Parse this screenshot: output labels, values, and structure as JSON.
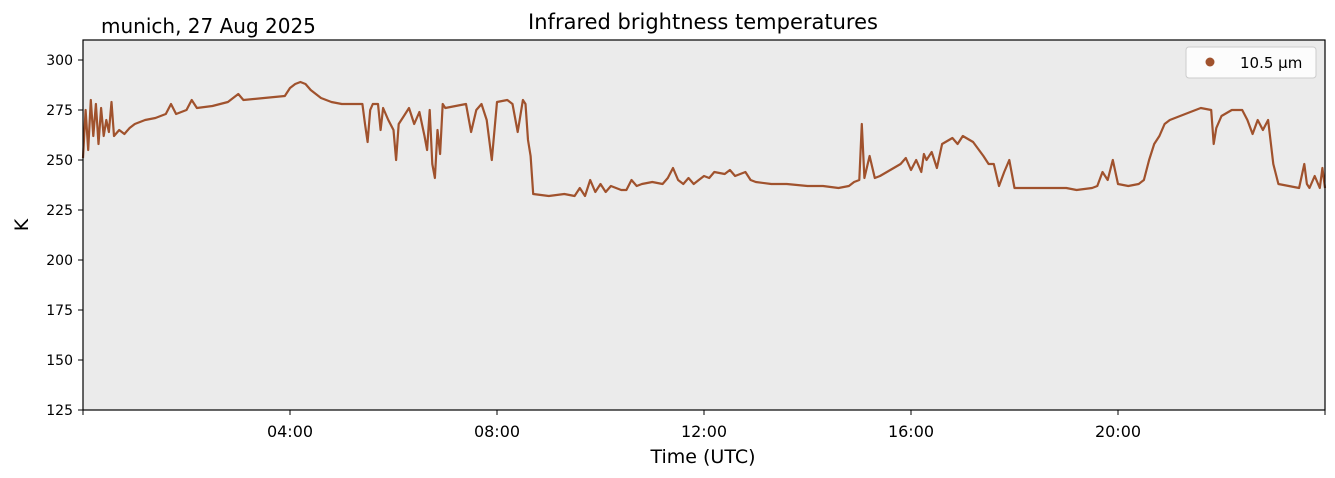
{
  "subtitle": "munich, 27 Aug 2025",
  "chart_data": {
    "type": "line",
    "title": "Infrared brightness temperatures",
    "xlabel": "Time (UTC)",
    "ylabel": "K",
    "xlim": [
      0,
      24
    ],
    "ylim": [
      125,
      310
    ],
    "x_ticks": [
      {
        "value": 4,
        "label": "04:00"
      },
      {
        "value": 8,
        "label": "08:00"
      },
      {
        "value": 12,
        "label": "12:00"
      },
      {
        "value": 16,
        "label": "16:00"
      },
      {
        "value": 20,
        "label": "20:00"
      }
    ],
    "y_ticks": [
      125,
      150,
      175,
      200,
      225,
      250,
      275,
      300
    ],
    "grid": false,
    "background": "#ebebeb",
    "legend": {
      "placement": "top-right"
    },
    "series": [
      {
        "name": "10.5 µm",
        "color": "#a0522d",
        "points": [
          [
            0.0,
            251
          ],
          [
            0.05,
            275
          ],
          [
            0.1,
            255
          ],
          [
            0.15,
            280
          ],
          [
            0.2,
            262
          ],
          [
            0.25,
            278
          ],
          [
            0.3,
            258
          ],
          [
            0.35,
            276
          ],
          [
            0.4,
            262
          ],
          [
            0.45,
            270
          ],
          [
            0.5,
            264
          ],
          [
            0.55,
            279
          ],
          [
            0.6,
            262
          ],
          [
            0.7,
            265
          ],
          [
            0.8,
            263
          ],
          [
            0.9,
            266
          ],
          [
            1.0,
            268
          ],
          [
            1.2,
            270
          ],
          [
            1.4,
            271
          ],
          [
            1.6,
            273
          ],
          [
            1.7,
            278
          ],
          [
            1.8,
            273
          ],
          [
            2.0,
            275
          ],
          [
            2.1,
            280
          ],
          [
            2.2,
            276
          ],
          [
            2.5,
            277
          ],
          [
            2.8,
            279
          ],
          [
            3.0,
            283
          ],
          [
            3.1,
            280
          ],
          [
            3.5,
            281
          ],
          [
            3.9,
            282
          ],
          [
            4.0,
            286
          ],
          [
            4.1,
            288
          ],
          [
            4.2,
            289
          ],
          [
            4.3,
            288
          ],
          [
            4.4,
            285
          ],
          [
            4.6,
            281
          ],
          [
            4.8,
            279
          ],
          [
            5.0,
            278
          ],
          [
            5.2,
            278
          ],
          [
            5.4,
            278
          ],
          [
            5.45,
            268
          ],
          [
            5.5,
            259
          ],
          [
            5.55,
            275
          ],
          [
            5.6,
            278
          ],
          [
            5.7,
            278
          ],
          [
            5.75,
            265
          ],
          [
            5.8,
            276
          ],
          [
            5.9,
            270
          ],
          [
            6.0,
            265
          ],
          [
            6.05,
            250
          ],
          [
            6.1,
            268
          ],
          [
            6.2,
            272
          ],
          [
            6.3,
            276
          ],
          [
            6.4,
            268
          ],
          [
            6.5,
            274
          ],
          [
            6.6,
            262
          ],
          [
            6.65,
            255
          ],
          [
            6.7,
            275
          ],
          [
            6.75,
            248
          ],
          [
            6.8,
            241
          ],
          [
            6.85,
            265
          ],
          [
            6.9,
            253
          ],
          [
            6.95,
            278
          ],
          [
            7.0,
            276
          ],
          [
            7.2,
            277
          ],
          [
            7.4,
            278
          ],
          [
            7.5,
            264
          ],
          [
            7.6,
            275
          ],
          [
            7.7,
            278
          ],
          [
            7.8,
            270
          ],
          [
            7.9,
            250
          ],
          [
            8.0,
            279
          ],
          [
            8.2,
            280
          ],
          [
            8.3,
            278
          ],
          [
            8.4,
            264
          ],
          [
            8.5,
            280
          ],
          [
            8.55,
            278
          ],
          [
            8.6,
            260
          ],
          [
            8.65,
            252
          ],
          [
            8.7,
            233
          ],
          [
            9.0,
            232
          ],
          [
            9.3,
            233
          ],
          [
            9.5,
            232
          ],
          [
            9.6,
            236
          ],
          [
            9.7,
            232
          ],
          [
            9.8,
            240
          ],
          [
            9.9,
            234
          ],
          [
            10.0,
            238
          ],
          [
            10.1,
            234
          ],
          [
            10.2,
            237
          ],
          [
            10.4,
            235
          ],
          [
            10.5,
            235
          ],
          [
            10.6,
            240
          ],
          [
            10.7,
            237
          ],
          [
            10.8,
            238
          ],
          [
            11.0,
            239
          ],
          [
            11.2,
            238
          ],
          [
            11.3,
            241
          ],
          [
            11.4,
            246
          ],
          [
            11.5,
            240
          ],
          [
            11.6,
            238
          ],
          [
            11.7,
            241
          ],
          [
            11.8,
            238
          ],
          [
            11.9,
            240
          ],
          [
            12.0,
            242
          ],
          [
            12.1,
            241
          ],
          [
            12.2,
            244
          ],
          [
            12.4,
            243
          ],
          [
            12.5,
            245
          ],
          [
            12.6,
            242
          ],
          [
            12.8,
            244
          ],
          [
            12.9,
            240
          ],
          [
            13.0,
            239
          ],
          [
            13.3,
            238
          ],
          [
            13.6,
            238
          ],
          [
            14.0,
            237
          ],
          [
            14.3,
            237
          ],
          [
            14.6,
            236
          ],
          [
            14.8,
            237
          ],
          [
            14.9,
            239
          ],
          [
            15.0,
            240
          ],
          [
            15.05,
            268
          ],
          [
            15.1,
            241
          ],
          [
            15.2,
            252
          ],
          [
            15.3,
            241
          ],
          [
            15.4,
            242
          ],
          [
            15.6,
            245
          ],
          [
            15.8,
            248
          ],
          [
            15.9,
            251
          ],
          [
            16.0,
            245
          ],
          [
            16.1,
            250
          ],
          [
            16.2,
            244
          ],
          [
            16.25,
            253
          ],
          [
            16.3,
            250
          ],
          [
            16.4,
            254
          ],
          [
            16.5,
            246
          ],
          [
            16.6,
            258
          ],
          [
            16.8,
            261
          ],
          [
            16.9,
            258
          ],
          [
            17.0,
            262
          ],
          [
            17.2,
            259
          ],
          [
            17.4,
            252
          ],
          [
            17.5,
            248
          ],
          [
            17.6,
            248
          ],
          [
            17.7,
            237
          ],
          [
            17.8,
            244
          ],
          [
            17.9,
            250
          ],
          [
            18.0,
            236
          ],
          [
            18.2,
            236
          ],
          [
            18.5,
            236
          ],
          [
            18.8,
            236
          ],
          [
            19.0,
            236
          ],
          [
            19.2,
            235
          ],
          [
            19.5,
            236
          ],
          [
            19.6,
            237
          ],
          [
            19.7,
            244
          ],
          [
            19.8,
            240
          ],
          [
            19.9,
            250
          ],
          [
            20.0,
            238
          ],
          [
            20.2,
            237
          ],
          [
            20.4,
            238
          ],
          [
            20.5,
            240
          ],
          [
            20.6,
            250
          ],
          [
            20.7,
            258
          ],
          [
            20.8,
            262
          ],
          [
            20.9,
            268
          ],
          [
            21.0,
            270
          ],
          [
            21.2,
            272
          ],
          [
            21.4,
            274
          ],
          [
            21.6,
            276
          ],
          [
            21.8,
            275
          ],
          [
            21.85,
            258
          ],
          [
            21.9,
            266
          ],
          [
            22.0,
            272
          ],
          [
            22.2,
            275
          ],
          [
            22.4,
            275
          ],
          [
            22.5,
            270
          ],
          [
            22.6,
            263
          ],
          [
            22.7,
            270
          ],
          [
            22.8,
            265
          ],
          [
            22.9,
            270
          ],
          [
            23.0,
            248
          ],
          [
            23.1,
            238
          ],
          [
            23.3,
            237
          ],
          [
            23.5,
            236
          ],
          [
            23.6,
            248
          ],
          [
            23.65,
            238
          ],
          [
            23.7,
            236
          ],
          [
            23.8,
            242
          ],
          [
            23.9,
            236
          ],
          [
            23.95,
            246
          ],
          [
            24.0,
            236
          ]
        ]
      }
    ]
  }
}
